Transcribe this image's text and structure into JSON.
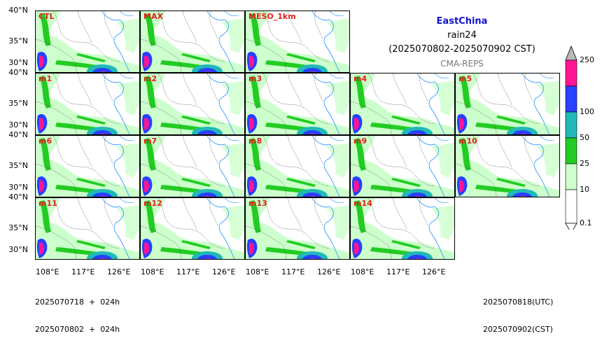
{
  "map": {
    "region": "EastChina",
    "variable": "rain24",
    "period": "(2025070802-2025070902 CST)",
    "system": "CMA-REPS",
    "region_color": "#1111cc",
    "system_color": "#777777"
  },
  "panels": [
    {
      "label": "CTL",
      "row": 0,
      "col": 0
    },
    {
      "label": "MAX",
      "row": 0,
      "col": 1
    },
    {
      "label": "MESO_1km",
      "row": 0,
      "col": 2
    },
    {
      "label": "m1",
      "row": 1,
      "col": 0
    },
    {
      "label": "m2",
      "row": 1,
      "col": 1
    },
    {
      "label": "m3",
      "row": 1,
      "col": 2
    },
    {
      "label": "m4",
      "row": 1,
      "col": 3
    },
    {
      "label": "m5",
      "row": 1,
      "col": 4
    },
    {
      "label": "m6",
      "row": 2,
      "col": 0
    },
    {
      "label": "m7",
      "row": 2,
      "col": 1
    },
    {
      "label": "m8",
      "row": 2,
      "col": 2
    },
    {
      "label": "m9",
      "row": 2,
      "col": 3
    },
    {
      "label": "m10",
      "row": 2,
      "col": 4
    },
    {
      "label": "m11",
      "row": 3,
      "col": 0
    },
    {
      "label": "m12",
      "row": 3,
      "col": 1
    },
    {
      "label": "m13",
      "row": 3,
      "col": 2
    },
    {
      "label": "m14",
      "row": 3,
      "col": 3
    }
  ],
  "axes": {
    "lat_labels": [
      "40°N",
      "35°N",
      "30°N"
    ],
    "lon_labels": [
      "108°E",
      "117°E",
      "126°E"
    ]
  },
  "colorbar": {
    "levels": [
      "0.1",
      "10",
      "25",
      "50",
      "100",
      "250"
    ],
    "colors": [
      "#ccffcc",
      "#22cc22",
      "#20b8b8",
      "#2840ff",
      "#ff1493",
      "#b8b8b8"
    ]
  },
  "footer": {
    "left_line1": "2025070718  +  024h",
    "left_line2": "2025070802  +  024h",
    "right_line1": "2025070818(UTC)",
    "right_line2": "2025070902(CST)"
  }
}
